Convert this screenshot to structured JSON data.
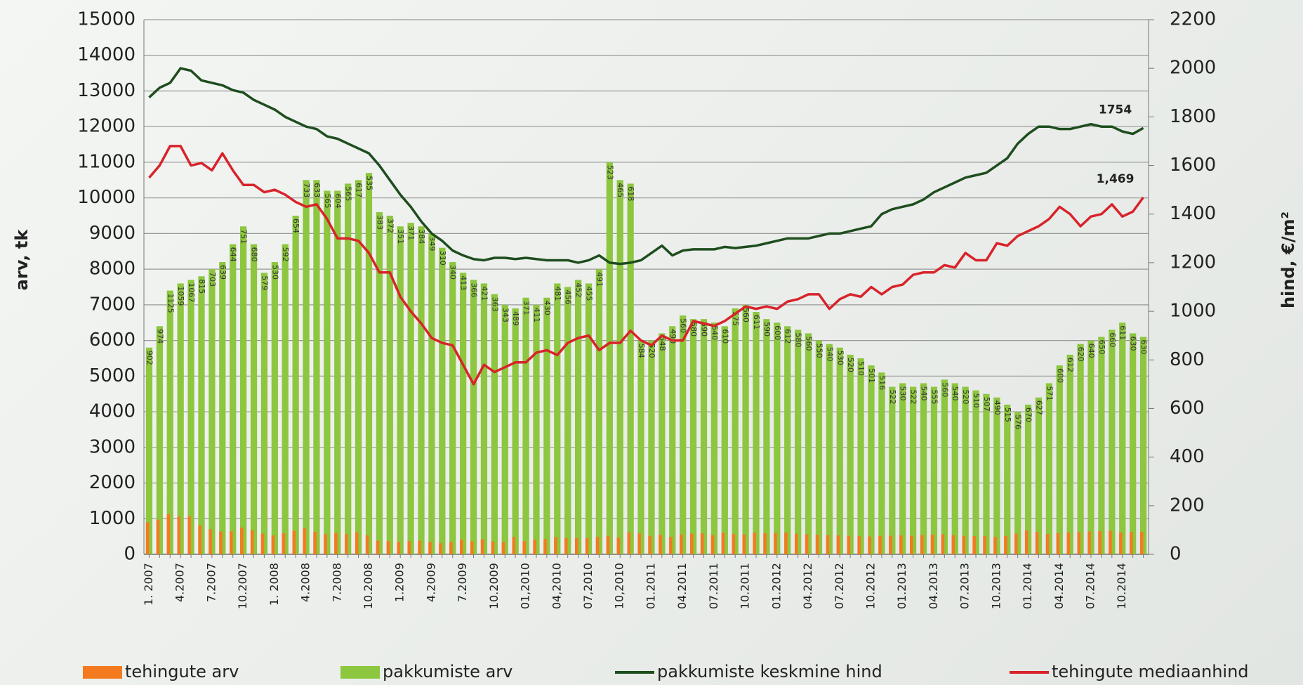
{
  "chart_data": {
    "type": "bar-line",
    "categories": [
      "1. 2007",
      null,
      null,
      "4.2007",
      null,
      null,
      "7.2007",
      null,
      null,
      "10.2007",
      null,
      null,
      "1. 2008",
      null,
      null,
      "4.2008",
      null,
      null,
      "7.2008",
      null,
      null,
      "10.2008",
      null,
      null,
      "1.2009",
      null,
      null,
      "4.2009",
      null,
      null,
      "7.2009",
      null,
      null,
      "10.2009",
      null,
      null,
      "01,2010",
      null,
      null,
      "04,2010",
      null,
      null,
      "07,2010",
      null,
      null,
      "10,2010",
      null,
      null,
      "01.2011",
      null,
      null,
      "04.2011",
      null,
      null,
      "07.2011",
      null,
      null,
      "10.2011",
      null,
      null,
      "01.2012",
      null,
      null,
      "04.2012",
      null,
      null,
      "07.2012",
      null,
      null,
      "10.2012",
      null,
      null,
      "01.2013",
      null,
      null,
      "04.2013",
      null,
      null,
      "07.2013",
      null,
      null,
      "10.2013",
      null,
      null,
      "01.2014",
      null,
      null,
      "04.2014",
      null,
      null,
      "07.2014",
      null,
      null,
      "10.2014",
      null,
      null
    ],
    "series": [
      {
        "name": "tehingute arv",
        "color": "#f47a20",
        "kind": "bar",
        "values": [
          902,
          974,
          1125,
          1059,
          1067,
          815,
          703,
          639,
          644,
          751,
          680,
          579,
          530,
          592,
          654,
          733,
          633,
          565,
          604,
          565,
          617,
          535,
          383,
          372,
          351,
          371,
          384,
          349,
          310,
          340,
          413,
          366,
          421,
          363,
          343,
          489,
          371,
          411,
          430,
          481,
          456,
          452,
          455,
          491,
          523,
          465,
          618,
          584,
          520,
          548,
          490,
          560,
          580,
          590,
          540,
          610,
          575,
          560,
          611,
          590,
          600,
          612,
          580,
          560,
          550,
          540,
          530,
          520,
          510,
          501,
          516,
          522,
          530,
          522,
          540,
          555,
          560,
          540,
          520,
          510,
          507,
          490,
          515,
          576,
          670,
          627,
          571,
          600,
          612,
          620,
          640,
          650,
          660,
          611,
          630,
          630
        ]
      },
      {
        "name": "pakkumiste arv",
        "color": "#8dc63f",
        "kind": "bar",
        "values": [
          5800,
          6400,
          7400,
          7600,
          7700,
          7800,
          8000,
          8200,
          8700,
          9200,
          8700,
          7900,
          8200,
          8700,
          9500,
          10500,
          10500,
          10200,
          10200,
          10400,
          10500,
          10700,
          9600,
          9500,
          9200,
          9300,
          9200,
          9000,
          8600,
          8200,
          7900,
          7700,
          7600,
          7300,
          7000,
          6900,
          7200,
          7000,
          7200,
          7600,
          7500,
          7700,
          7600,
          8000,
          11000,
          10500,
          10400,
          6000,
          6000,
          6200,
          6400,
          6700,
          6600,
          6600,
          6500,
          6400,
          6900,
          7000,
          6800,
          6600,
          6500,
          6400,
          6300,
          6200,
          6000,
          5900,
          5800,
          5600,
          5500,
          5300,
          5100,
          4700,
          4800,
          4700,
          4800,
          4700,
          4900,
          4800,
          4700,
          4600,
          4500,
          4400,
          4200,
          4000,
          4200,
          4400,
          4800,
          5300,
          5600,
          5900,
          6000,
          6100,
          6300,
          6500,
          6200,
          6100
        ]
      },
      {
        "name": "pakkumiste keskmine hind",
        "color": "#1e4d1e",
        "kind": "line",
        "axis": "y2",
        "values": [
          1880,
          1920,
          1940,
          2000,
          1990,
          1950,
          1940,
          1930,
          1910,
          1900,
          1870,
          1850,
          1830,
          1800,
          1780,
          1760,
          1750,
          1720,
          1710,
          1690,
          1670,
          1650,
          1600,
          1540,
          1480,
          1430,
          1370,
          1320,
          1290,
          1250,
          1230,
          1215,
          1210,
          1220,
          1220,
          1215,
          1220,
          1215,
          1210,
          1210,
          1210,
          1200,
          1210,
          1230,
          1200,
          1195,
          1200,
          1210,
          1240,
          1270,
          1230,
          1250,
          1255,
          1255,
          1255,
          1265,
          1260,
          1265,
          1270,
          1280,
          1290,
          1300,
          1300,
          1300,
          1310,
          1320,
          1320,
          1330,
          1340,
          1350,
          1400,
          1420,
          1430,
          1440,
          1460,
          1490,
          1510,
          1530,
          1550,
          1560,
          1570,
          1600,
          1630,
          1690,
          1730,
          1760,
          1760,
          1750,
          1750,
          1760,
          1770,
          1760,
          1760,
          1740,
          1730,
          1754
        ]
      },
      {
        "name": "tehingute mediaanhind",
        "color": "#d8232a",
        "kind": "line",
        "axis": "y2",
        "values": [
          1550,
          1600,
          1680,
          1680,
          1600,
          1610,
          1580,
          1650,
          1580,
          1520,
          1520,
          1490,
          1500,
          1480,
          1450,
          1430,
          1440,
          1380,
          1300,
          1300,
          1290,
          1240,
          1160,
          1160,
          1060,
          1000,
          950,
          890,
          870,
          860,
          780,
          700,
          780,
          750,
          770,
          790,
          790,
          830,
          840,
          820,
          870,
          890,
          900,
          840,
          870,
          870,
          920,
          880,
          860,
          900,
          880,
          880,
          960,
          950,
          940,
          960,
          990,
          1020,
          1010,
          1020,
          1010,
          1040,
          1050,
          1070,
          1070,
          1010,
          1050,
          1070,
          1060,
          1100,
          1070,
          1100,
          1110,
          1150,
          1160,
          1160,
          1190,
          1180,
          1240,
          1210,
          1210,
          1280,
          1270,
          1310,
          1330,
          1350,
          1380,
          1430,
          1400,
          1350,
          1390,
          1400,
          1440,
          1390,
          1410,
          1469
        ]
      }
    ],
    "annotations": [
      "1754",
      "1,469"
    ],
    "ylabel": "arv, tk",
    "y2label": "hind, €/m²",
    "ylim": [
      0,
      15000
    ],
    "yticks": [
      0,
      1000,
      2000,
      3000,
      4000,
      5000,
      6000,
      7000,
      8000,
      9000,
      10000,
      11000,
      12000,
      13000,
      14000,
      15000
    ],
    "y2lim": [
      0,
      2200
    ],
    "y2ticks": [
      0,
      200,
      400,
      600,
      800,
      1000,
      1200,
      1400,
      1600,
      1800,
      2000,
      2200
    ],
    "grid": true,
    "legend": "bottom"
  }
}
